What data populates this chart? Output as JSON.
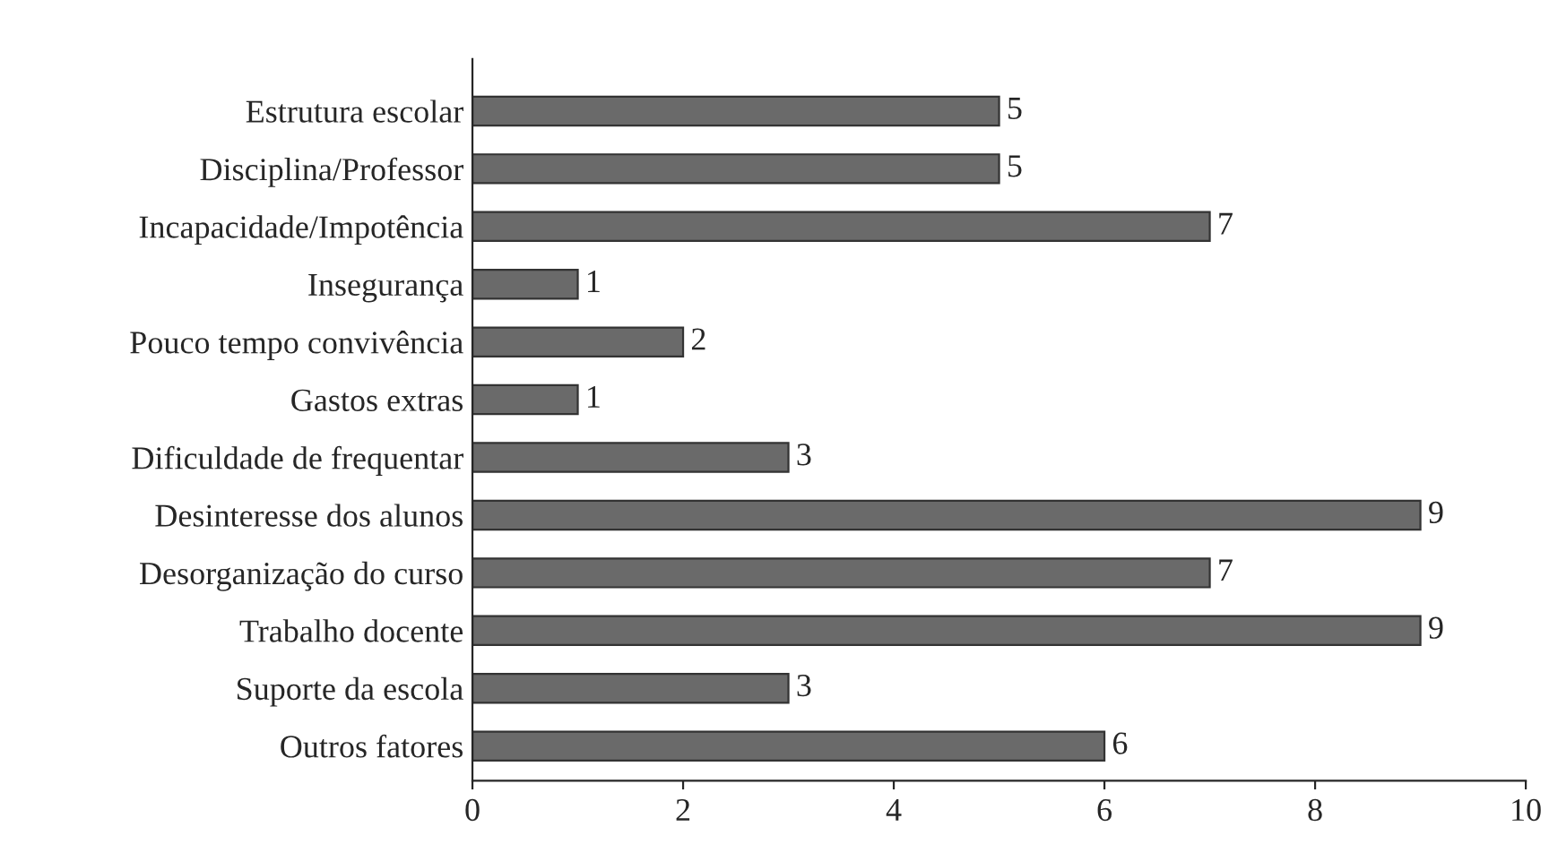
{
  "chart_data": {
    "type": "bar",
    "orientation": "horizontal",
    "categories": [
      "Estrutura escolar",
      "Disciplina/Professor",
      "Incapacidade/Impotência",
      "Insegurança",
      "Pouco tempo convivência",
      "Gastos extras",
      "Dificuldade de frequentar",
      "Desinteresse dos alunos",
      "Desorganização do curso",
      "Trabalho docente",
      "Suporte da escola",
      "Outros fatores"
    ],
    "values": [
      5,
      5,
      7,
      1,
      2,
      1,
      3,
      9,
      7,
      9,
      3,
      6
    ],
    "color": "#6a6a6a",
    "xlim": [
      0,
      10
    ],
    "xticks": [
      0,
      2,
      4,
      6,
      8,
      10
    ],
    "data_labels": true,
    "grid": false,
    "legend": false
  }
}
